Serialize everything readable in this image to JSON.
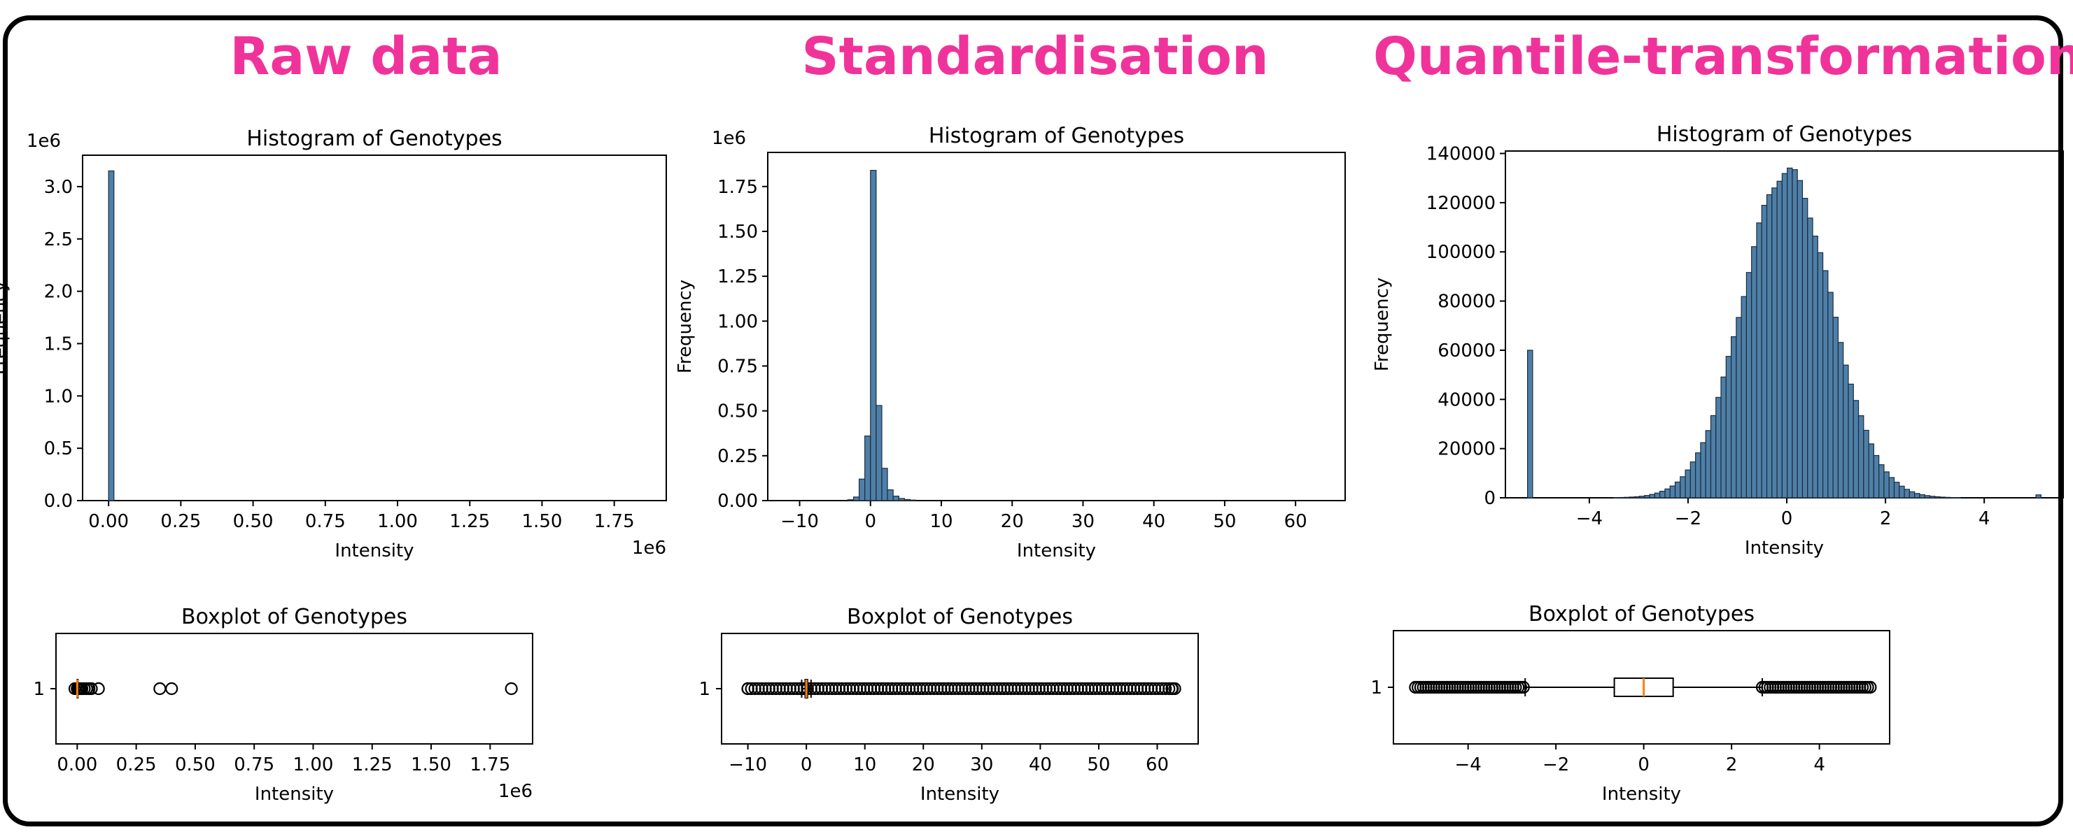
{
  "panels": [
    {
      "title": "Raw data",
      "histogram": {
        "title": "Histogram of Genotypes",
        "xlabel": "Intensity",
        "ylabel": "Frequency",
        "x_offset_label": "1e6",
        "y_offset_label": "1e6",
        "xlim": [
          -0.09,
          1.93
        ],
        "ylim": [
          0,
          3.3
        ],
        "x_ticks": [
          0.0,
          0.25,
          0.5,
          0.75,
          1.0,
          1.25,
          1.5,
          1.75
        ],
        "x_tick_labels": [
          "0.00",
          "0.25",
          "0.50",
          "0.75",
          "1.00",
          "1.25",
          "1.50",
          "1.75"
        ],
        "y_ticks": [
          0.0,
          0.5,
          1.0,
          1.5,
          2.0,
          2.5,
          3.0
        ],
        "y_tick_labels": [
          "0.0",
          "0.5",
          "1.0",
          "1.5",
          "2.0",
          "2.5",
          "3.0"
        ]
      },
      "boxplot": {
        "title": "Boxplot of Genotypes",
        "xlabel": "Intensity",
        "x_offset_label": "1e6",
        "y_tick_label": "1",
        "xlim": [
          -0.09,
          1.93
        ],
        "x_ticks": [
          0.0,
          0.25,
          0.5,
          0.75,
          1.0,
          1.25,
          1.5,
          1.75
        ],
        "x_tick_labels": [
          "0.00",
          "0.25",
          "0.50",
          "0.75",
          "1.00",
          "1.25",
          "1.50",
          "1.75"
        ]
      }
    },
    {
      "title": "Standardisation",
      "histogram": {
        "title": "Histogram of Genotypes",
        "xlabel": "Intensity",
        "ylabel": "Frequency",
        "y_offset_label": "1e6",
        "xlim": [
          -14.5,
          67
        ],
        "ylim": [
          0,
          1.94
        ],
        "x_ticks": [
          -10,
          0,
          10,
          20,
          30,
          40,
          50,
          60
        ],
        "x_tick_labels": [
          "−10",
          "0",
          "10",
          "20",
          "30",
          "40",
          "50",
          "60"
        ],
        "y_ticks": [
          0.0,
          0.25,
          0.5,
          0.75,
          1.0,
          1.25,
          1.5,
          1.75
        ],
        "y_tick_labels": [
          "0.00",
          "0.25",
          "0.50",
          "0.75",
          "1.00",
          "1.25",
          "1.50",
          "1.75"
        ]
      },
      "boxplot": {
        "title": "Boxplot of Genotypes",
        "xlabel": "Intensity",
        "y_tick_label": "1",
        "xlim": [
          -14.5,
          67
        ],
        "x_ticks": [
          -10,
          0,
          10,
          20,
          30,
          40,
          50,
          60
        ],
        "x_tick_labels": [
          "−10",
          "0",
          "10",
          "20",
          "30",
          "40",
          "50",
          "60"
        ]
      }
    },
    {
      "title": "Quantile-transformation",
      "histogram": {
        "title": "Histogram of Genotypes",
        "xlabel": "Intensity",
        "ylabel": "Frequency",
        "xlim": [
          -5.7,
          5.6
        ],
        "ylim": [
          0,
          141000
        ],
        "x_ticks": [
          -4,
          -2,
          0,
          2,
          4
        ],
        "x_tick_labels": [
          "−4",
          "−2",
          "0",
          "2",
          "4"
        ],
        "y_ticks": [
          0,
          20000,
          40000,
          60000,
          80000,
          100000,
          120000,
          140000
        ],
        "y_tick_labels": [
          "0",
          "20000",
          "40000",
          "60000",
          "80000",
          "100000",
          "120000",
          "140000"
        ]
      },
      "boxplot": {
        "title": "Boxplot of Genotypes",
        "xlabel": "Intensity",
        "y_tick_label": "1",
        "xlim": [
          -5.7,
          5.6
        ],
        "x_ticks": [
          -4,
          -2,
          0,
          2,
          4
        ],
        "x_tick_labels": [
          "−4",
          "−2",
          "0",
          "2",
          "4"
        ]
      }
    }
  ],
  "chart_data": [
    {
      "type": "bar",
      "title": "Histogram of Genotypes",
      "xlabel": "Intensity",
      "ylabel": "Frequency",
      "x_units": "1e6",
      "y_units": "1e6",
      "xlim": [
        -0.09,
        1.93
      ],
      "ylim": [
        0,
        3.3
      ],
      "grid": false,
      "bin_width": 0.0185,
      "bins_x": [
        0.0
      ],
      "values": [
        3.15
      ]
    },
    {
      "type": "boxplot",
      "title": "Boxplot of Genotypes",
      "xlabel": "Intensity",
      "x_units": "1e6",
      "xlim": [
        -0.09,
        1.93
      ],
      "median": 0.0,
      "q1": 0.0,
      "q3": 0.0,
      "whisker_low": 0.0,
      "whisker_high": 0.0,
      "outliers": [
        -0.01,
        0.0,
        0.005,
        0.01,
        0.015,
        0.02,
        0.03,
        0.04,
        0.05,
        0.06,
        0.09,
        0.35,
        0.4,
        1.84
      ]
    },
    {
      "type": "bar",
      "title": "Histogram of Genotypes",
      "xlabel": "Intensity",
      "ylabel": "Frequency",
      "y_units": "1e6",
      "xlim": [
        -14.5,
        67
      ],
      "ylim": [
        0,
        1.94
      ],
      "grid": false,
      "bin_width": 0.8,
      "bins_x": [
        -3.2,
        -2.4,
        -1.6,
        -0.8,
        0.0,
        0.8,
        1.6,
        2.4,
        3.2,
        4.0,
        4.8,
        5.6
      ],
      "values": [
        0.005,
        0.02,
        0.12,
        0.36,
        1.84,
        0.53,
        0.18,
        0.06,
        0.025,
        0.012,
        0.006,
        0.003
      ]
    },
    {
      "type": "boxplot",
      "title": "Boxplot of Genotypes",
      "xlabel": "Intensity",
      "xlim": [
        -14.5,
        67
      ],
      "median": 0.0,
      "q1": -0.2,
      "q3": 0.2,
      "whisker_low": -0.8,
      "whisker_high": 0.8,
      "outlier_range": [
        -10.0,
        63.0
      ],
      "outliers": [
        -10.0,
        62.5,
        63.0
      ]
    },
    {
      "type": "bar",
      "title": "Histogram of Genotypes",
      "xlabel": "Intensity",
      "ylabel": "Frequency",
      "xlim": [
        -5.7,
        5.6
      ],
      "ylim": [
        0,
        141000
      ],
      "grid": false,
      "bin_width": 0.1032,
      "spike": {
        "x": -5.2,
        "value": 60000
      },
      "tail_right": {
        "x": 5.1,
        "value": 1200
      },
      "normal_fit": {
        "mean": 0.0,
        "peak": 133000,
        "sd": 0.9
      },
      "peaks_sampled": [
        {
          "x": -3.0,
          "value": 1500
        },
        {
          "x": -2.0,
          "value": 11000
        },
        {
          "x": -1.0,
          "value": 66000
        },
        {
          "x": 0.0,
          "value": 134000
        },
        {
          "x": 1.0,
          "value": 66000
        },
        {
          "x": 2.0,
          "value": 11000
        },
        {
          "x": 3.0,
          "value": 1500
        }
      ]
    },
    {
      "type": "boxplot",
      "title": "Boxplot of Genotypes",
      "xlabel": "Intensity",
      "xlim": [
        -5.7,
        5.6
      ],
      "median": 0.0,
      "q1": -0.67,
      "q3": 0.67,
      "whisker_low": -2.7,
      "whisker_high": 2.7,
      "outlier_range_low": [
        -5.2,
        -2.7
      ],
      "outlier_range_high": [
        2.7,
        5.2
      ]
    }
  ]
}
